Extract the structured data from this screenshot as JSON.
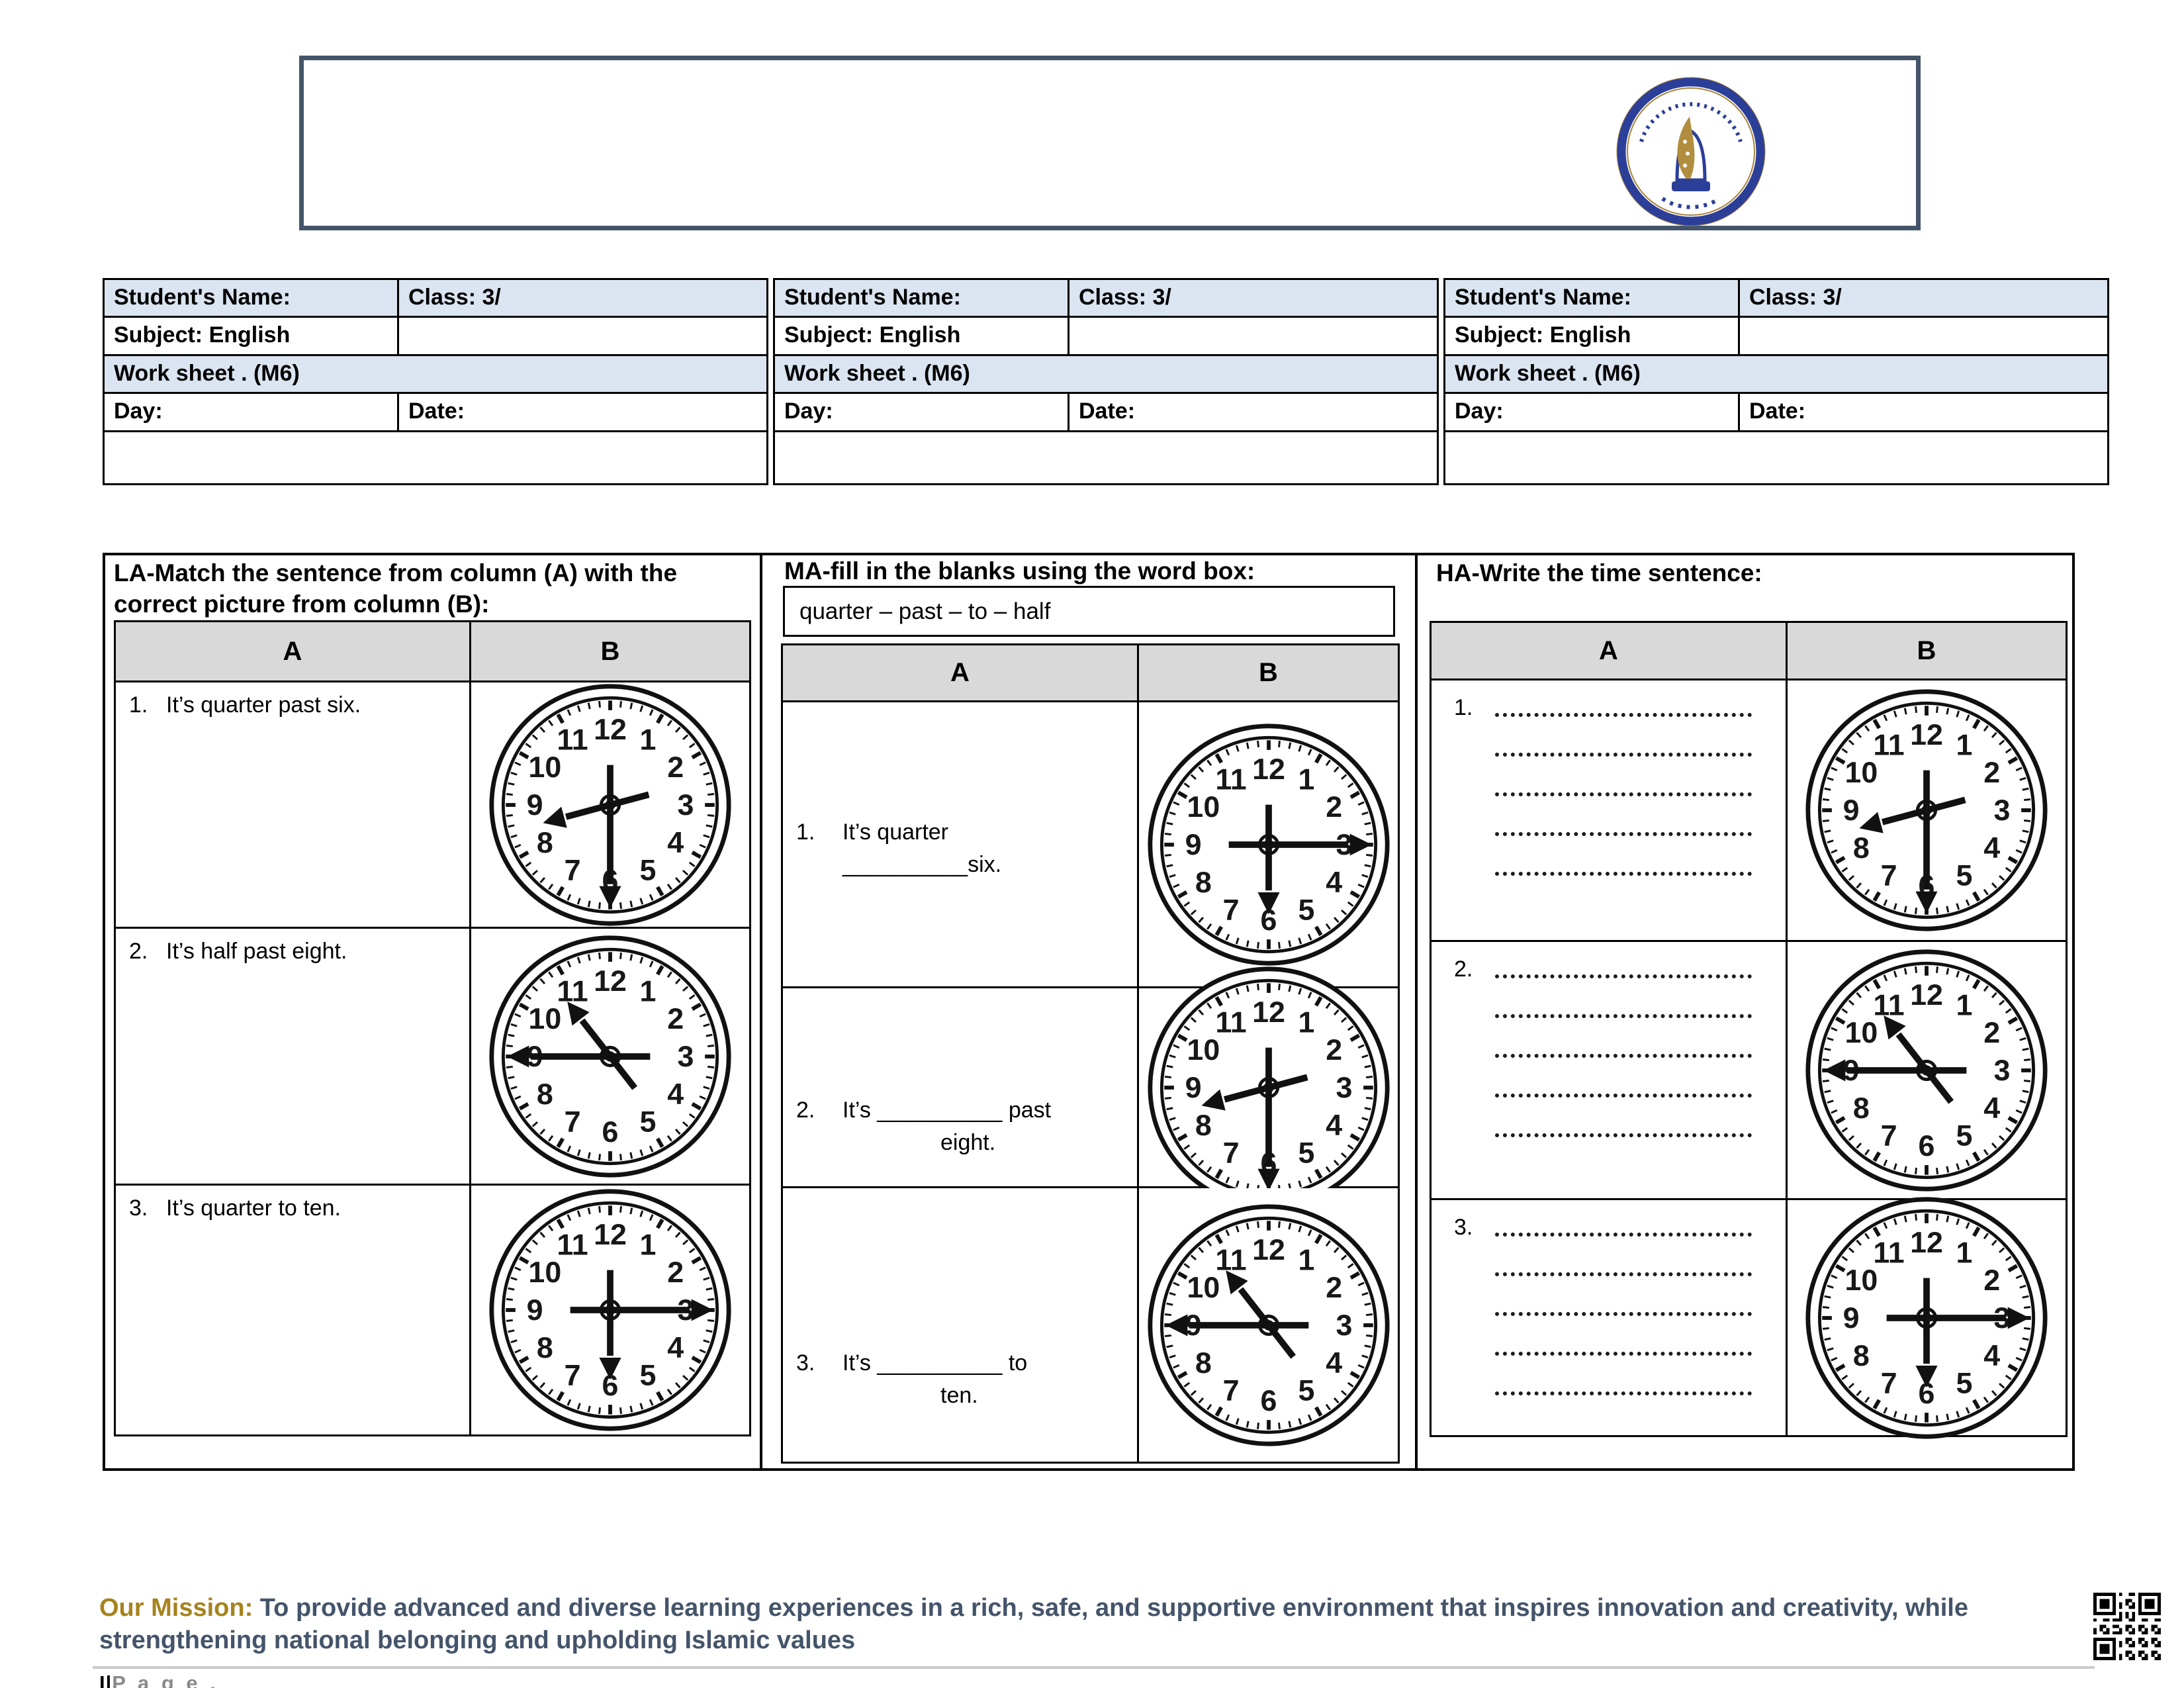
{
  "header": {
    "logo_icon": "school-logo"
  },
  "info_block": {
    "student_name_label": "Student's Name:",
    "class_label": "Class:  3/",
    "subject_label": "Subject: English",
    "worksheet_label": "Work sheet . (M6)",
    "day_label": "Day:",
    "date_label": "Date:"
  },
  "sections": {
    "la": {
      "title": "LA-Match the sentence from column (A) with the correct picture from column (B):",
      "col_a": "A",
      "col_b": "B",
      "rows": [
        {
          "num": "1.",
          "text": "It’s quarter past six.",
          "clock": {
            "hour_deg": 255,
            "minute_deg": 180
          }
        },
        {
          "num": "2.",
          "text": "It’s half past eight.",
          "clock": {
            "hour_deg": 322,
            "minute_deg": 270
          }
        },
        {
          "num": "3.",
          "text": "It’s quarter to ten.",
          "clock": {
            "hour_deg": 180,
            "minute_deg": 90
          }
        }
      ]
    },
    "ma": {
      "title": "MA-fill in the blanks using the word box:",
      "word_box": "quarter – past – to – half",
      "col_a": "A",
      "col_b": "B",
      "rows": [
        {
          "num": "1.",
          "line1": "It’s quarter",
          "line2": "__________six.",
          "indent2": false,
          "clock": {
            "hour_deg": 180,
            "minute_deg": 90
          }
        },
        {
          "num": "2.",
          "line1": "It’s __________ past",
          "line2": "eight.",
          "indent2": true,
          "clock": {
            "hour_deg": 255,
            "minute_deg": 180
          }
        },
        {
          "num": "3.",
          "line1": "It’s __________ to",
          "line2": "ten.",
          "indent2": true,
          "clock": {
            "hour_deg": 322,
            "minute_deg": 270
          }
        }
      ]
    },
    "ha": {
      "title": "HA-Write the time sentence:",
      "col_a": "A",
      "col_b": "B",
      "dotted_lines_per_row": 5,
      "rows": [
        {
          "num": "1.",
          "clock": {
            "hour_deg": 255,
            "minute_deg": 180
          }
        },
        {
          "num": "2.",
          "clock": {
            "hour_deg": 322,
            "minute_deg": 270
          }
        },
        {
          "num": "3.",
          "clock": {
            "hour_deg": 180,
            "minute_deg": 90
          }
        }
      ]
    }
  },
  "clock_face": {
    "numbers": [
      "12",
      "1",
      "2",
      "3",
      "4",
      "5",
      "6",
      "7",
      "8",
      "9",
      "10",
      "11"
    ]
  },
  "footer": {
    "mission_label": "Our Mission:",
    "mission_text": " To provide advanced and diverse learning experiences in a rich, safe, and supportive environment that inspires innovation and creativity, while strengthening national belonging and upholding Islamic values",
    "page_prefix": "I|",
    "page_label": "P a g e .",
    "qr_icon": "qr-code"
  },
  "colors": {
    "info_header_bg": "#dbe5f1",
    "table_header_bg": "#d9d9d9",
    "mission_label": "#a6831e",
    "mission_text": "#44546a",
    "header_border": "#44546a",
    "logo_blue": "#2c3f98",
    "logo_gold": "#a8853c"
  }
}
